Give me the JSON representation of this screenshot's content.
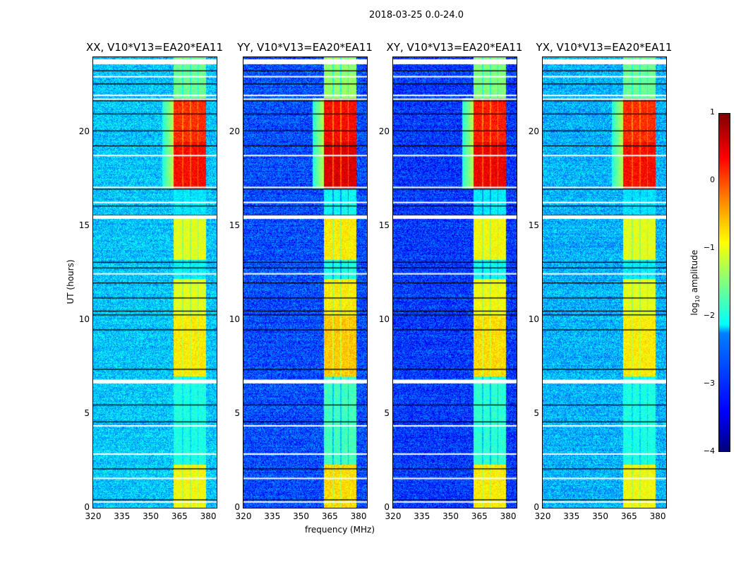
{
  "chart_data": {
    "type": "heatmap",
    "suptitle": "2018-03-25 0.0-24.0",
    "xlabel": "frequency (MHz)",
    "ylabel": "UT (hours)",
    "xlim": [
      320,
      384.4
    ],
    "ylim": [
      0,
      24
    ],
    "xticks": [
      "320",
      "335",
      "350",
      "365",
      "380"
    ],
    "xtick_values": [
      320,
      335,
      350,
      365,
      380
    ],
    "yticks": [
      "0",
      "5",
      "10",
      "15",
      "20"
    ],
    "ytick_values": [
      0,
      5,
      10,
      15,
      20
    ],
    "colormap": "jet",
    "colorbar": {
      "label": "log10 amplitude",
      "label_main": "log",
      "label_sub": "10",
      "label_rest": " amplitude",
      "range": [
        -4,
        1
      ],
      "ticks": [
        "1",
        "0",
        "−1",
        "−2",
        "−3",
        "−4"
      ],
      "tick_values": [
        1,
        0,
        -1,
        -2,
        -3,
        -4
      ]
    },
    "rfi_subbands_mhz": [
      [
        362,
        366.5
      ],
      [
        367,
        370.5
      ],
      [
        371,
        374.5
      ],
      [
        375,
        379
      ]
    ],
    "time_segments": [
      {
        "t": [
          0,
          2.3
        ],
        "rfi": -0.9
      },
      {
        "t": [
          2.3,
          7
        ],
        "rfi": -2.0
      },
      {
        "t": [
          7,
          10.2
        ],
        "rfi": -0.8
      },
      {
        "t": [
          10.2,
          12.2
        ],
        "rfi": -1.0
      },
      {
        "t": [
          12.2,
          13.2
        ],
        "rfi": -2.2
      },
      {
        "t": [
          13.2,
          15.4
        ],
        "rfi": -1.0
      },
      {
        "t": [
          15.4,
          17
        ],
        "rfi": -2.3
      },
      {
        "t": [
          17,
          19.5
        ],
        "rfi": 0.35
      },
      {
        "t": [
          19.5,
          21.8
        ],
        "rfi": 0.15
      },
      {
        "t": [
          21.8,
          24
        ],
        "rfi": -1.6
      }
    ],
    "flagged_white_hours": [
      0.35,
      1.6,
      2.9,
      4.4,
      6.7,
      12.5,
      15.5,
      16.3,
      17.1,
      18.8,
      21.8,
      22.0,
      23.0,
      23.7
    ],
    "black_line_hours": [
      0.45,
      2.1,
      4.6,
      5.5,
      7.4,
      9.5,
      10.3,
      10.5,
      11.2,
      12.0,
      12.8,
      13.1,
      15.6,
      16.1,
      17.0,
      19.3,
      20.1,
      21.0,
      21.7,
      22.6,
      23.3,
      23.8
    ],
    "panels": [
      {
        "title": "XX, V10*V13=EA20*EA11",
        "background": -2.4,
        "rfi_offset": 0
      },
      {
        "title": "YY, V10*V13=EA20*EA11",
        "background": -3.0,
        "rfi_offset": 0.2
      },
      {
        "title": "XY, V10*V13=EA20*EA11",
        "background": -3.1,
        "rfi_offset": 0.1
      },
      {
        "title": "YX, V10*V13=EA20*EA11",
        "background": -2.5,
        "rfi_offset": 0
      }
    ]
  }
}
